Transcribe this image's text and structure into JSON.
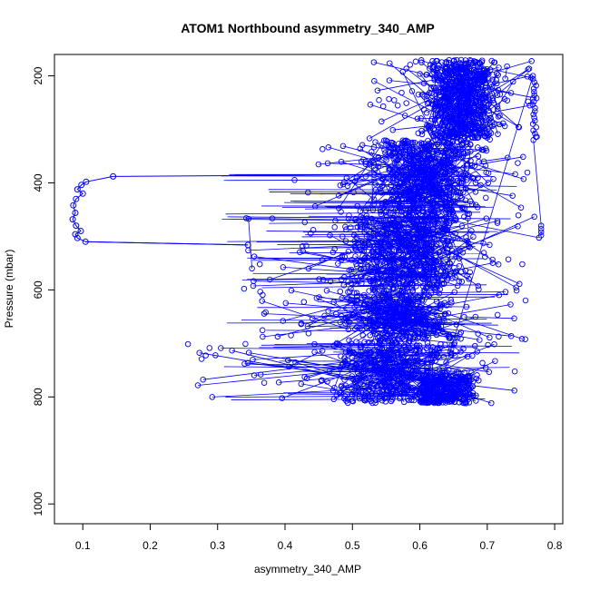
{
  "chart_data": {
    "type": "scatter",
    "title": "ATOM1 Northbound asymmetry_340_AMP",
    "xlabel": "asymmetry_340_AMP",
    "ylabel": "Pressure (mbar)",
    "xlim": [
      0.058,
      0.812
    ],
    "ylim": [
      1037,
      160
    ],
    "y_reversed": true,
    "x_ticks": [
      0.1,
      0.2,
      0.3,
      0.4,
      0.5,
      0.6,
      0.7,
      0.8
    ],
    "x_tick_labels": [
      "0.1",
      "0.2",
      "0.3",
      "0.4",
      "0.5",
      "0.6",
      "0.7",
      "0.8"
    ],
    "y_ticks": [
      200,
      400,
      600,
      800,
      1000
    ],
    "y_tick_labels": [
      "200",
      "400",
      "600",
      "800",
      "1000"
    ],
    "grid": false,
    "legend": "none",
    "series_color": "#0000ff",
    "marker": "open-circle",
    "series": [
      {
        "points_hint": "dense profile cloud",
        "outlier_profile": [
          [
            0.145,
            388
          ],
          [
            0.105,
            398
          ],
          [
            0.098,
            404
          ],
          [
            0.092,
            412
          ],
          [
            0.1,
            420
          ],
          [
            0.09,
            430
          ],
          [
            0.086,
            442
          ],
          [
            0.089,
            456
          ],
          [
            0.085,
            468
          ],
          [
            0.09,
            480
          ],
          [
            0.097,
            490
          ],
          [
            0.089,
            496
          ],
          [
            0.092,
            503
          ],
          [
            0.104,
            510
          ],
          [
            0.345,
            516
          ]
        ],
        "clusters": [
          {
            "p_min": 170,
            "p_max": 320,
            "x_min": 0.52,
            "x_max": 0.78,
            "center": 0.66
          },
          {
            "p_min": 320,
            "p_max": 460,
            "x_min": 0.4,
            "x_max": 0.77,
            "center": 0.61
          },
          {
            "p_min": 460,
            "p_max": 600,
            "x_min": 0.33,
            "x_max": 0.78,
            "center": 0.58
          },
          {
            "p_min": 600,
            "p_max": 700,
            "x_min": 0.36,
            "x_max": 0.76,
            "center": 0.57
          },
          {
            "p_min": 700,
            "p_max": 812,
            "x_min": 0.25,
            "x_max": 0.76,
            "center": 0.57
          }
        ]
      }
    ]
  }
}
